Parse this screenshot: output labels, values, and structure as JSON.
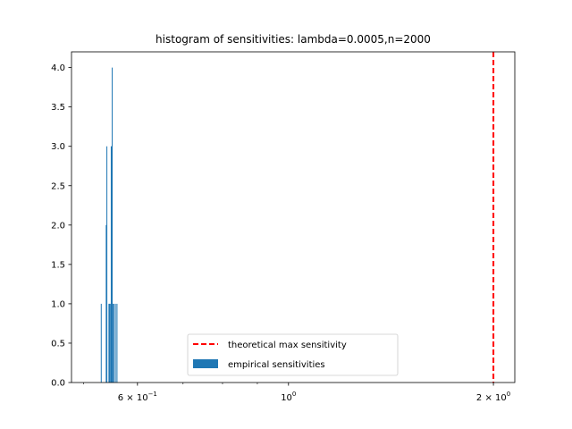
{
  "chart_data": {
    "type": "bar",
    "title": "histogram of sensitivities: lambda=0.0005,n=2000",
    "xlabel": "",
    "ylabel": "",
    "xscale": "log",
    "xlim": [
      0.48,
      2.15
    ],
    "ylim": [
      0,
      4.2
    ],
    "grid": false,
    "legend_position": "lower center",
    "x_ticks": [
      {
        "value": 0.6,
        "base": "6 × 10",
        "exp": "−1"
      },
      {
        "value": 1.0,
        "base": "10",
        "exp": "0"
      },
      {
        "value": 2.0,
        "base": "2 × 10",
        "exp": "0"
      }
    ],
    "y_ticks": [
      "0.0",
      "0.5",
      "1.0",
      "1.5",
      "2.0",
      "2.5",
      "3.0",
      "3.5",
      "4.0"
    ],
    "series": [
      {
        "name": "empirical sensitivities",
        "kind": "histogram",
        "color": "#1f77b4",
        "bins": [
          {
            "x0": 0.53,
            "x1": 0.5306,
            "count": 1
          },
          {
            "x0": 0.539,
            "x1": 0.5396,
            "count": 2
          },
          {
            "x0": 0.5402,
            "x1": 0.5408,
            "count": 3
          },
          {
            "x0": 0.544,
            "x1": 0.5446,
            "count": 1
          },
          {
            "x0": 0.5452,
            "x1": 0.5458,
            "count": 1
          },
          {
            "x0": 0.547,
            "x1": 0.5476,
            "count": 1
          },
          {
            "x0": 0.5482,
            "x1": 0.5488,
            "count": 3
          },
          {
            "x0": 0.5488,
            "x1": 0.5494,
            "count": 3
          },
          {
            "x0": 0.55,
            "x1": 0.5506,
            "count": 4
          },
          {
            "x0": 0.5512,
            "x1": 0.5518,
            "count": 1
          },
          {
            "x0": 0.553,
            "x1": 0.5536,
            "count": 1
          },
          {
            "x0": 0.556,
            "x1": 0.5566,
            "count": 1
          },
          {
            "x0": 0.559,
            "x1": 0.5596,
            "count": 1
          }
        ]
      },
      {
        "name": "theoretical max sensitivity",
        "kind": "vline",
        "x": 2.0,
        "color": "#ff0000",
        "style": "dashed"
      }
    ]
  }
}
